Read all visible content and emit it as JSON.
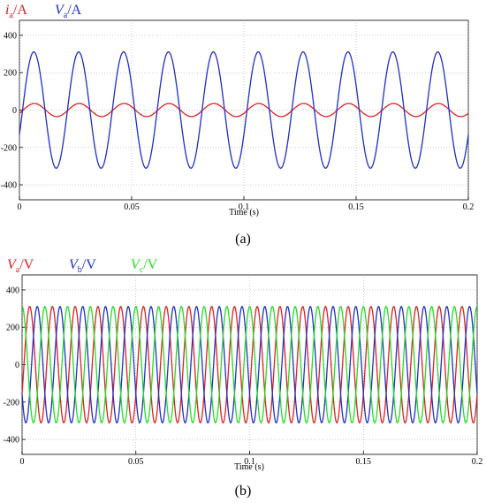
{
  "chart_data": [
    {
      "type": "line",
      "panel_label": "(a)",
      "legend": [
        {
          "var": "i",
          "sub": "a",
          "unit": "/A",
          "color": "#e02020"
        },
        {
          "var": "V",
          "sub": "a",
          "unit": "/A",
          "color": "#1f2fc8"
        }
      ],
      "xlabel": "Time (s)",
      "xlim": [
        0,
        0.2
      ],
      "ylim": [
        -480,
        480
      ],
      "xticks": [
        0,
        0.05,
        0.1,
        0.15,
        0.2
      ],
      "xtick_labels": [
        "0",
        "0.05",
        "0.1",
        "0.15",
        "0.2"
      ],
      "yticks": [
        400,
        200,
        0,
        -200,
        -400
      ],
      "ytick_labels": [
        "400",
        "200",
        "0",
        "-200",
        "-400"
      ],
      "grid": true,
      "series": [
        {
          "name": "ia",
          "color": "#e02020",
          "amplitude": 35,
          "frequency_hz": 50,
          "phase_deg": -30
        },
        {
          "name": "Va",
          "color": "#1f2fc8",
          "amplitude": 311,
          "frequency_hz": 50,
          "phase_deg": -25
        }
      ]
    },
    {
      "type": "line",
      "panel_label": "(b)",
      "legend": [
        {
          "var": "V",
          "sub": "a",
          "unit": "/V",
          "color": "#e02020"
        },
        {
          "var": "V",
          "sub": "b",
          "unit": "/V",
          "color": "#1f2fc8"
        },
        {
          "var": "V",
          "sub": "c",
          "unit": "/V",
          "color": "#22dd22"
        }
      ],
      "xlabel": "Time (s)",
      "xlim": [
        0,
        0.2
      ],
      "ylim": [
        -480,
        480
      ],
      "xticks": [
        0,
        0.05,
        0.1,
        0.15,
        0.2
      ],
      "xtick_labels": [
        "0",
        "0.05",
        "0.1",
        "0.15",
        "0.2"
      ],
      "yticks": [
        400,
        200,
        0,
        -200,
        -400
      ],
      "ytick_labels": [
        "400",
        "200",
        "0",
        "-200",
        "-400"
      ],
      "grid": true,
      "series": [
        {
          "name": "Va",
          "color": "#e02020",
          "amplitude": 311,
          "frequency_hz": 100,
          "phase_deg": -30
        },
        {
          "name": "Vb",
          "color": "#1f2fc8",
          "amplitude": 311,
          "frequency_hz": 100,
          "phase_deg": -150
        },
        {
          "name": "Vc",
          "color": "#22dd22",
          "amplitude": 311,
          "frequency_hz": 100,
          "phase_deg": 90
        }
      ]
    }
  ]
}
